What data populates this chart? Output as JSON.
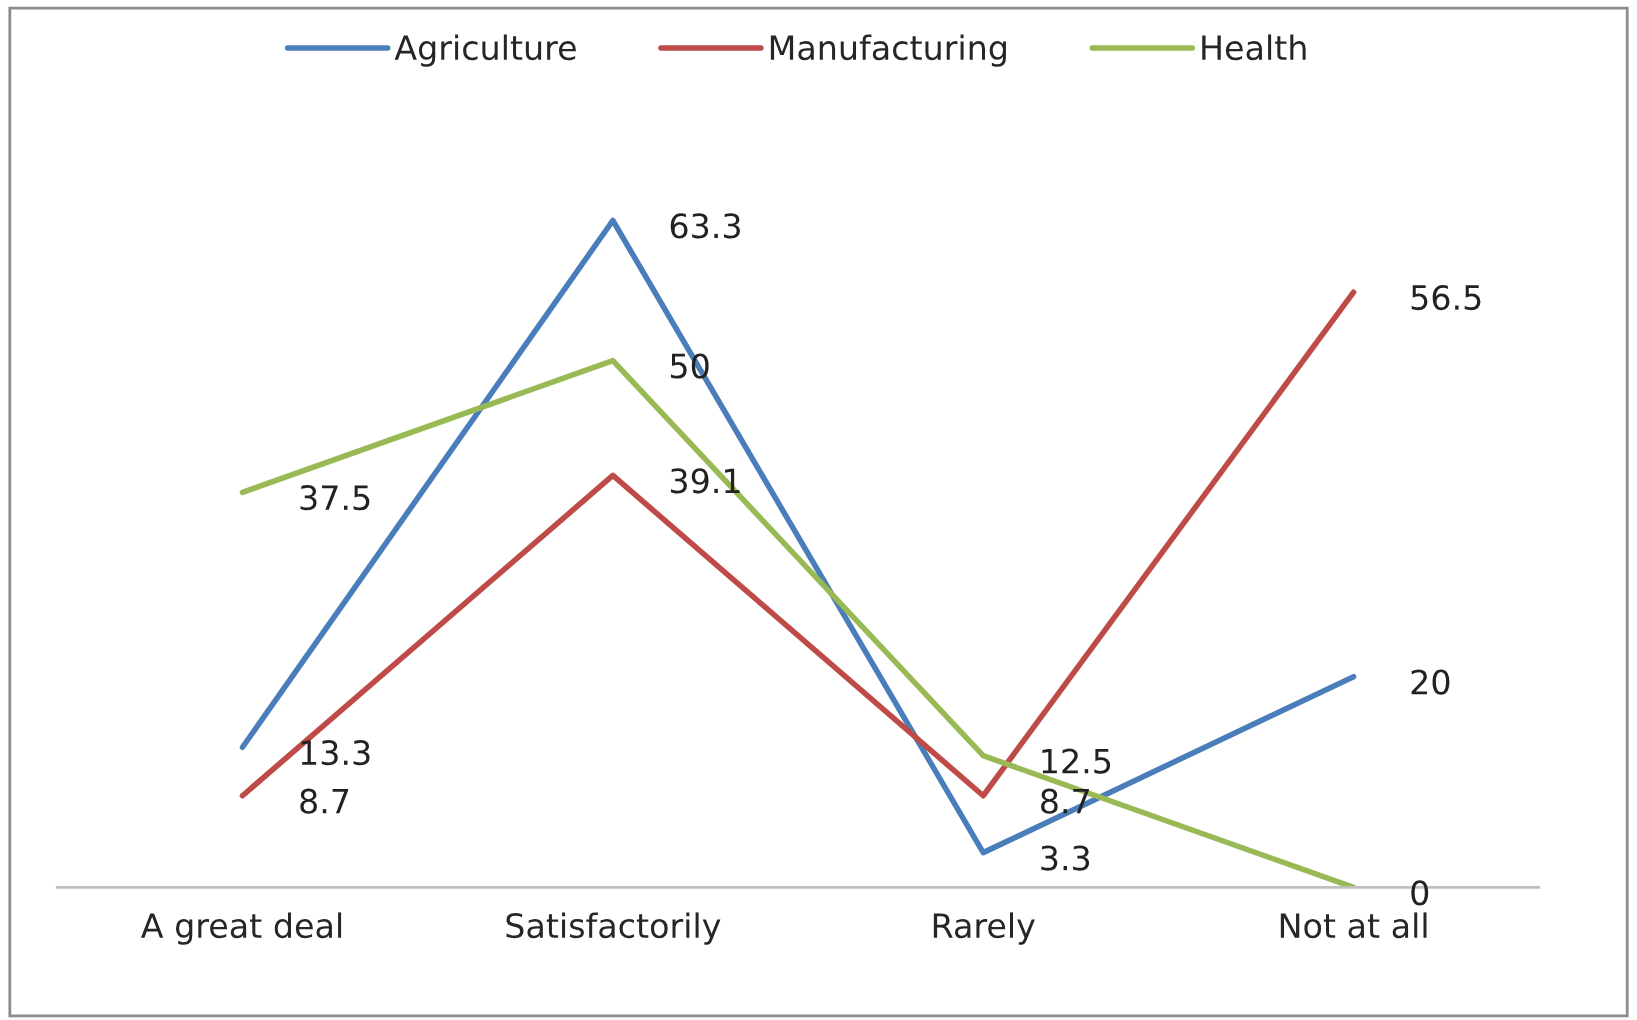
{
  "chart_data": {
    "type": "line",
    "categories": [
      "A great deal",
      "Satisfactorily",
      "Rarely",
      "Not at all"
    ],
    "series": [
      {
        "name": "Agriculture",
        "color": "#4a7ebb",
        "values": [
          13.3,
          63.3,
          3.3,
          20
        ]
      },
      {
        "name": "Manufacturing",
        "color": "#be4b48",
        "values": [
          8.7,
          39.1,
          8.7,
          56.5
        ]
      },
      {
        "name": "Health",
        "color": "#98b954",
        "values": [
          37.5,
          50,
          12.5,
          0
        ]
      }
    ],
    "data_labels": true,
    "legend": "top",
    "grid": false,
    "marker": "none",
    "line_style": "solid"
  }
}
